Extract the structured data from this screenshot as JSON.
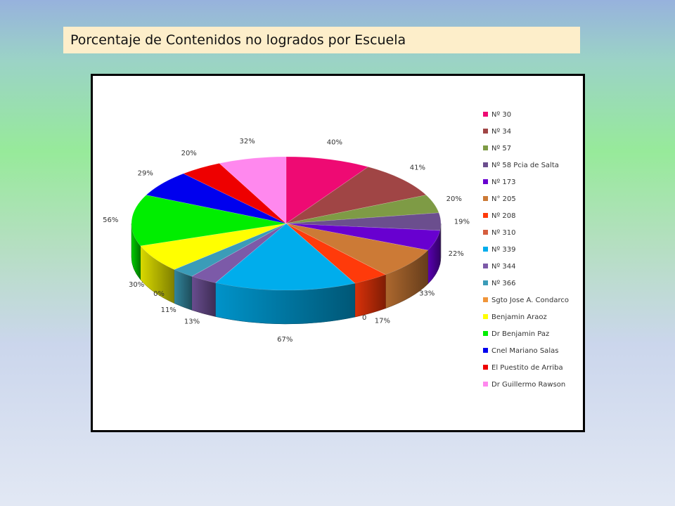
{
  "title": "Porcentaje de Contenidos no logrados por Escuela",
  "chart_data": {
    "type": "pie",
    "three_d": true,
    "legend_position": "right",
    "title": "",
    "categories": [
      "Nº 30",
      "Nº 34",
      "Nº 57",
      "Nº 58 Pcia de Salta",
      "Nº 173",
      "N° 205",
      "Nº 208",
      "Nº 310",
      "Nº 339",
      "Nº 344",
      "Nº 366",
      "Sgto Jose A. Condarco",
      "Benjamin Araoz",
      "Dr Benjamin Paz",
      "Cnel Mariano Salas",
      "El Puestito de Arriba",
      "Dr Guillermo Rawson"
    ],
    "values": [
      40,
      41,
      20,
      19,
      22,
      33,
      17,
      0,
      67,
      13,
      11,
      0,
      30,
      56,
      29,
      20,
      32
    ],
    "data_labels": [
      "40%",
      "41%",
      "20%",
      "19%",
      "22%",
      "33%",
      "17%",
      "0",
      "67%",
      "13%",
      "11%",
      "0%",
      "30%",
      "56%",
      "29%",
      "20%",
      "32%"
    ],
    "colors": [
      "#ee0a73",
      "#a04545",
      "#7e9b45",
      "#6b4e8e",
      "#6800d0",
      "#cc7a36",
      "#ff3a0a",
      "#d55e3e",
      "#00adec",
      "#7c5aa8",
      "#3b9cb8",
      "#f0953a",
      "#ffff00",
      "#00ee00",
      "#0000ee",
      "#ee0000",
      "#ff88ee"
    ]
  }
}
